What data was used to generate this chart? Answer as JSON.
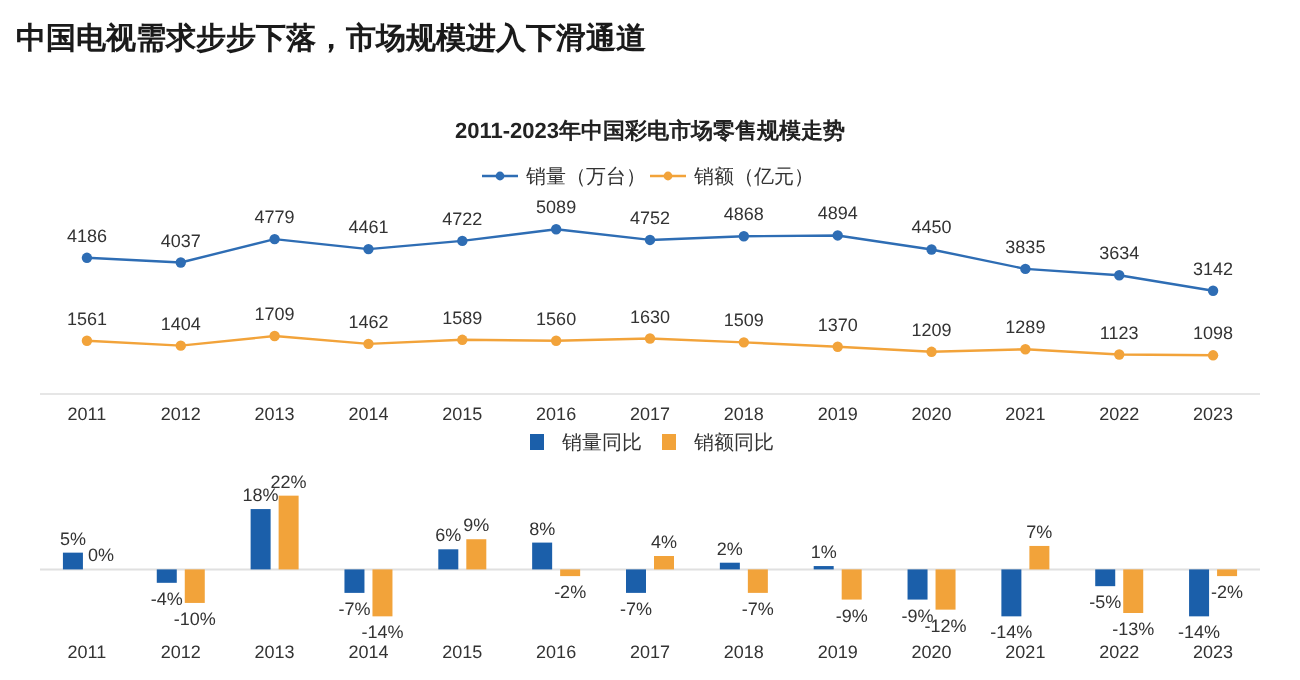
{
  "chart_data": [
    {
      "type": "line",
      "title": "中国电视需求步步下落，市场规模进入下滑通道",
      "subtitle": "2011-2023年中国彩电市场零售规模走势",
      "categories": [
        "2011",
        "2012",
        "2013",
        "2014",
        "2015",
        "2016",
        "2017",
        "2018",
        "2019",
        "2020",
        "2021",
        "2022",
        "2023"
      ],
      "series": [
        {
          "name": "销量（万台）",
          "color": "#2e6db4",
          "values": [
            4186,
            4037,
            4779,
            4461,
            4722,
            5089,
            4752,
            4868,
            4894,
            4450,
            3835,
            3634,
            3142
          ]
        },
        {
          "name": "销额（亿元）",
          "color": "#f2a33a",
          "values": [
            1561,
            1404,
            1709,
            1462,
            1589,
            1560,
            1630,
            1509,
            1370,
            1209,
            1289,
            1123,
            1098
          ]
        }
      ],
      "data_labels": true,
      "legend": "top",
      "marker": "circle",
      "line_style": "solid"
    },
    {
      "type": "bar",
      "categories": [
        "2011",
        "2012",
        "2013",
        "2014",
        "2015",
        "2016",
        "2017",
        "2018",
        "2019",
        "2020",
        "2021",
        "2022",
        "2023"
      ],
      "series": [
        {
          "name": "销量同比",
          "color": "#1b5faa",
          "values": [
            5,
            -4,
            18,
            -7,
            6,
            8,
            -7,
            2,
            1,
            -9,
            -14,
            -5,
            -14
          ],
          "value_labels": [
            "5%",
            "-4%",
            "18%",
            "-7%",
            "6%",
            "8%",
            "-7%",
            "2%",
            "1%",
            "-9%",
            "-14%",
            "-5%",
            "-14%"
          ]
        },
        {
          "name": "销额同比",
          "color": "#f2a33a",
          "values": [
            0,
            -10,
            22,
            -14,
            9,
            -2,
            4,
            -7,
            -9,
            -12,
            7,
            -13,
            -2
          ],
          "value_labels": [
            "0%",
            "-10%",
            "22%",
            "-14%",
            "9%",
            "-2%",
            "4%",
            "-7%",
            "-9%",
            "-12%",
            "7%",
            "-13%",
            "-2%"
          ]
        }
      ],
      "legend": "top"
    }
  ]
}
